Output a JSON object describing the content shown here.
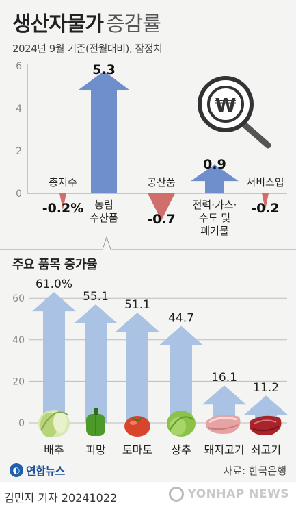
{
  "header": {
    "title_bold": "생산자물가",
    "title_light": "증감률",
    "subtitle": "2024년 9월 기준(전월대비), 잠정치"
  },
  "section2_title": "주요 품목 증가율",
  "source": "자료: 한국은행",
  "logo_text": "연합뉴스",
  "author_line": "김민지 기자  20241022",
  "watermark": "YONHAP NEWS",
  "colors": {
    "blue_arrow": "#6f8fcc",
    "red_arrow": "#cf6e6b",
    "light_arrow": "#aac2e4",
    "axis": "#999999"
  },
  "icons": [
    "won-magnifier-icon",
    "cabbage-icon",
    "pepper-icon",
    "tomato-icon",
    "lettuce-icon",
    "pork-icon",
    "beef-icon",
    "yonhap-logo-icon"
  ],
  "chart_data": [
    {
      "type": "bar",
      "title": "",
      "ylim": [
        0,
        6
      ],
      "yticks": [
        0,
        2,
        4,
        6
      ],
      "categories": [
        "총지수",
        "농림\n수산품",
        "공산품",
        "전력·가스·\n수도 및\n폐기물",
        "서비스업"
      ],
      "values": [
        -0.2,
        5.3,
        -0.7,
        0.9,
        -0.2
      ],
      "value_labels": [
        "-0.2%",
        "5.3",
        "-0.7",
        "0.9",
        "-0.2"
      ]
    },
    {
      "type": "bar",
      "title": "주요 품목 증가율",
      "ylim": [
        0,
        60
      ],
      "yticks": [
        0,
        20,
        40,
        60
      ],
      "categories": [
        "배추",
        "피망",
        "토마토",
        "상추",
        "돼지고기",
        "쇠고기"
      ],
      "values": [
        61.0,
        55.1,
        51.1,
        44.7,
        16.1,
        11.2
      ],
      "value_labels": [
        "61.0%",
        "55.1",
        "51.1",
        "44.7",
        "16.1",
        "11.2"
      ]
    }
  ]
}
